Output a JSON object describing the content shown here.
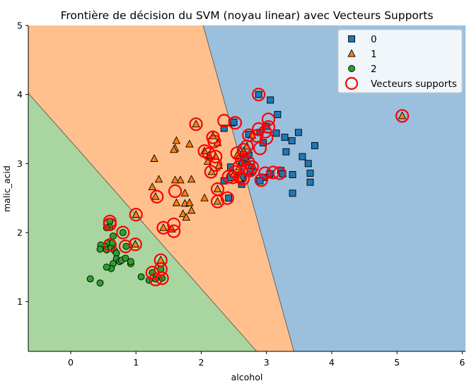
{
  "chart_data": {
    "type": "scatter",
    "title": "Frontière de décision du SVM (noyau linear) avec Vecteurs Supports",
    "xlabel": "alcohol",
    "ylabel": "malic_acid",
    "xlim": [
      -0.65,
      6.05
    ],
    "ylim": [
      0.28,
      5.0
    ],
    "xticks": [
      0,
      1,
      2,
      3,
      4,
      5,
      6
    ],
    "yticks": [
      1,
      2,
      3,
      4,
      5
    ],
    "grid": false,
    "legend_position": "top-right",
    "colors": {
      "0": "#1f77b4",
      "1": "#ff7f0e",
      "2": "#2ca02c",
      "sv": "#ff0000"
    },
    "regions": [
      {
        "class": "2",
        "color": "#a8d5a0",
        "boundary_from": [
          -0.65,
          4.02
        ],
        "boundary_to": [
          2.85,
          0.28
        ]
      },
      {
        "class": "1",
        "color": "#ffc08e",
        "boundary_from": [
          2.03,
          5.0
        ],
        "boundary_to": [
          3.42,
          0.28
        ]
      },
      {
        "class": "0",
        "color": "#9bc0dd"
      }
    ],
    "series": [
      {
        "name": "0",
        "marker": "square",
        "color": "#1f77b4",
        "points": [
          [
            2.88,
            4.0
          ],
          [
            3.06,
            3.92
          ],
          [
            3.17,
            3.71
          ],
          [
            2.47,
            3.59
          ],
          [
            2.35,
            3.51
          ],
          [
            3.49,
            3.45
          ],
          [
            3.15,
            3.44
          ],
          [
            3.28,
            3.38
          ],
          [
            3.39,
            3.33
          ],
          [
            3.74,
            3.26
          ],
          [
            3.0,
            3.54
          ],
          [
            2.9,
            3.45
          ],
          [
            2.73,
            3.42
          ],
          [
            2.95,
            3.3
          ],
          [
            3.3,
            3.17
          ],
          [
            3.55,
            3.1
          ],
          [
            3.64,
            3.0
          ],
          [
            3.67,
            2.86
          ],
          [
            3.67,
            2.73
          ],
          [
            3.4,
            2.84
          ],
          [
            3.4,
            2.57
          ],
          [
            3.22,
            2.9
          ],
          [
            3.25,
            2.85
          ],
          [
            3.05,
            2.85
          ],
          [
            2.95,
            2.8
          ],
          [
            2.73,
            3.12
          ],
          [
            2.66,
            3.05
          ],
          [
            2.77,
            2.95
          ],
          [
            2.62,
            3.0
          ],
          [
            2.45,
            2.95
          ],
          [
            2.45,
            2.8
          ],
          [
            2.35,
            2.75
          ],
          [
            2.62,
            2.7
          ],
          [
            2.62,
            2.8
          ],
          [
            2.42,
            2.5
          ],
          [
            2.75,
            2.88
          ],
          [
            2.9,
            2.75
          ],
          [
            2.5,
            3.6
          ]
        ]
      },
      {
        "name": "1",
        "marker": "triangle",
        "color": "#ff7f0e",
        "points": [
          [
            5.08,
            3.69
          ],
          [
            1.92,
            3.57
          ],
          [
            2.18,
            3.4
          ],
          [
            1.62,
            3.33
          ],
          [
            1.82,
            3.28
          ],
          [
            2.25,
            3.3
          ],
          [
            1.6,
            3.22
          ],
          [
            1.58,
            3.2
          ],
          [
            2.05,
            3.18
          ],
          [
            2.12,
            3.12
          ],
          [
            2.22,
            3.1
          ],
          [
            1.28,
            3.07
          ],
          [
            2.1,
            3.03
          ],
          [
            2.27,
            2.97
          ],
          [
            2.16,
            2.88
          ],
          [
            1.35,
            2.77
          ],
          [
            1.68,
            2.76
          ],
          [
            1.85,
            2.77
          ],
          [
            1.6,
            2.76
          ],
          [
            1.25,
            2.66
          ],
          [
            1.75,
            2.57
          ],
          [
            2.05,
            2.5
          ],
          [
            1.3,
            2.52
          ],
          [
            2.25,
            2.63
          ],
          [
            1.75,
            2.42
          ],
          [
            1.82,
            2.43
          ],
          [
            2.25,
            2.45
          ],
          [
            1.62,
            2.43
          ],
          [
            1.85,
            2.32
          ],
          [
            1.72,
            2.27
          ],
          [
            1.77,
            2.22
          ],
          [
            1.0,
            2.26
          ],
          [
            1.55,
            2.05
          ],
          [
            1.42,
            2.07
          ],
          [
            0.99,
            1.83
          ],
          [
            1.38,
            1.6
          ],
          [
            2.55,
            2.79
          ],
          [
            2.78,
            3.41
          ],
          [
            2.58,
            3.15
          ],
          [
            2.5,
            2.85
          ],
          [
            2.7,
            3.25
          ],
          [
            2.58,
            2.95
          ],
          [
            2.65,
            3.18
          ],
          [
            2.72,
            3.02
          ],
          [
            2.58,
            2.78
          ],
          [
            2.55,
            3.12
          ]
        ]
      },
      {
        "name": "2",
        "marker": "circle",
        "color": "#2ca02c",
        "points": [
          [
            0.6,
            2.16
          ],
          [
            0.6,
            2.08
          ],
          [
            0.55,
            2.07
          ],
          [
            0.8,
            2.0
          ],
          [
            0.65,
            1.95
          ],
          [
            0.56,
            1.85
          ],
          [
            0.52,
            1.8
          ],
          [
            0.46,
            1.82
          ],
          [
            0.45,
            1.76
          ],
          [
            0.55,
            1.75
          ],
          [
            0.62,
            1.78
          ],
          [
            0.67,
            1.74
          ],
          [
            0.7,
            1.7
          ],
          [
            0.64,
            1.85
          ],
          [
            0.85,
            1.8
          ],
          [
            0.7,
            1.62
          ],
          [
            0.75,
            1.58
          ],
          [
            0.65,
            1.55
          ],
          [
            0.62,
            1.48
          ],
          [
            0.55,
            1.5
          ],
          [
            0.78,
            1.6
          ],
          [
            0.84,
            1.63
          ],
          [
            0.92,
            1.55
          ],
          [
            0.92,
            1.58
          ],
          [
            0.3,
            1.33
          ],
          [
            0.45,
            1.27
          ],
          [
            1.08,
            1.36
          ],
          [
            1.25,
            1.42
          ],
          [
            1.2,
            1.31
          ],
          [
            1.3,
            1.33
          ],
          [
            1.38,
            1.47
          ],
          [
            1.4,
            1.34
          ]
        ]
      }
    ],
    "support_vectors": [
      [
        2.88,
        4.0
      ],
      [
        5.08,
        3.69
      ],
      [
        1.92,
        3.57
      ],
      [
        2.35,
        3.62
      ],
      [
        2.52,
        3.59
      ],
      [
        3.03,
        3.64
      ],
      [
        2.88,
        3.5
      ],
      [
        2.98,
        3.46
      ],
      [
        3.03,
        3.53
      ],
      [
        2.85,
        3.4
      ],
      [
        2.73,
        3.41
      ],
      [
        3.0,
        3.37
      ],
      [
        2.18,
        3.38
      ],
      [
        2.2,
        3.32
      ],
      [
        2.9,
        3.22
      ],
      [
        2.05,
        3.18
      ],
      [
        2.12,
        3.14
      ],
      [
        2.22,
        3.1
      ],
      [
        2.55,
        3.15
      ],
      [
        2.65,
        3.2
      ],
      [
        2.7,
        3.25
      ],
      [
        2.62,
        3.05
      ],
      [
        2.72,
        3.02
      ],
      [
        2.58,
        2.95
      ],
      [
        2.7,
        2.92
      ],
      [
        2.75,
        2.9
      ],
      [
        2.78,
        2.95
      ],
      [
        2.22,
        2.98
      ],
      [
        2.15,
        2.88
      ],
      [
        2.52,
        2.88
      ],
      [
        2.48,
        2.8
      ],
      [
        2.6,
        2.8
      ],
      [
        2.64,
        2.78
      ],
      [
        2.42,
        2.81
      ],
      [
        2.92,
        2.76
      ],
      [
        2.98,
        2.86
      ],
      [
        3.1,
        2.87
      ],
      [
        3.2,
        2.86
      ],
      [
        1.6,
        2.6
      ],
      [
        1.32,
        2.52
      ],
      [
        2.25,
        2.63
      ],
      [
        2.4,
        2.5
      ],
      [
        2.25,
        2.45
      ],
      [
        1.0,
        2.26
      ],
      [
        0.6,
        2.16
      ],
      [
        0.6,
        2.12
      ],
      [
        1.58,
        2.12
      ],
      [
        1.42,
        2.07
      ],
      [
        1.58,
        2.02
      ],
      [
        0.8,
        2.0
      ],
      [
        0.99,
        1.83
      ],
      [
        0.6,
        1.82
      ],
      [
        0.84,
        1.8
      ],
      [
        1.38,
        1.6
      ],
      [
        1.38,
        1.47
      ],
      [
        1.25,
        1.42
      ],
      [
        1.3,
        1.32
      ],
      [
        1.4,
        1.34
      ]
    ],
    "legend": [
      {
        "label": "0",
        "marker": "square",
        "color": "#1f77b4"
      },
      {
        "label": "1",
        "marker": "triangle",
        "color": "#ff7f0e"
      },
      {
        "label": "2",
        "marker": "circle",
        "color": "#2ca02c"
      },
      {
        "label": "Vecteurs supports",
        "marker": "ring",
        "color": "#ff0000"
      }
    ]
  }
}
